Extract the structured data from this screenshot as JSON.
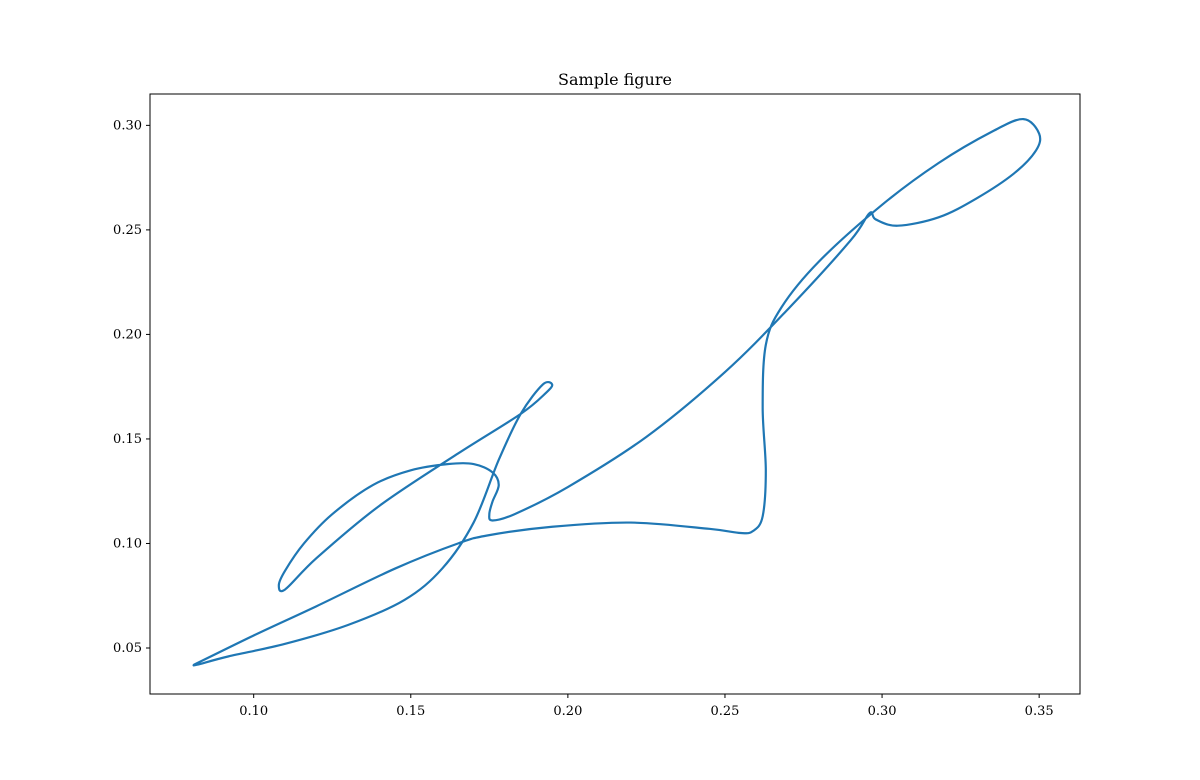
{
  "chart_data": {
    "type": "line",
    "title": "Sample figure",
    "xlabel": "",
    "ylabel": "",
    "xlim": [
      0.067,
      0.363
    ],
    "ylim": [
      0.028,
      0.315
    ],
    "xticks": [
      0.1,
      0.15,
      0.2,
      0.25,
      0.3,
      0.35
    ],
    "xtick_labels": [
      "0.10",
      "0.15",
      "0.20",
      "0.25",
      "0.30",
      "0.35"
    ],
    "yticks": [
      0.05,
      0.1,
      0.15,
      0.2,
      0.25,
      0.3
    ],
    "ytick_labels": [
      "0.05",
      "0.10",
      "0.15",
      "0.20",
      "0.25",
      "0.30"
    ],
    "grid": false,
    "series": [
      {
        "color": "#1f77b4",
        "x": [
          0.081,
          0.1,
          0.12,
          0.145,
          0.165,
          0.175,
          0.195,
          0.22,
          0.245,
          0.255,
          0.259,
          0.262,
          0.263,
          0.262,
          0.263,
          0.268,
          0.28,
          0.3,
          0.318,
          0.335,
          0.345,
          0.35,
          0.349,
          0.342,
          0.33,
          0.318,
          0.305,
          0.298,
          0.296,
          0.29,
          0.27,
          0.25,
          0.225,
          0.2,
          0.183,
          0.176,
          0.175,
          0.176,
          0.178,
          0.176,
          0.17,
          0.162,
          0.15,
          0.138,
          0.125,
          0.116,
          0.11,
          0.108,
          0.11,
          0.12,
          0.14,
          0.165,
          0.185,
          0.193,
          0.195,
          0.192,
          0.185,
          0.178,
          0.17,
          0.16,
          0.148,
          0.13,
          0.11,
          0.092,
          0.082,
          0.081
        ],
        "y": [
          0.042,
          0.056,
          0.07,
          0.088,
          0.1,
          0.104,
          0.108,
          0.11,
          0.107,
          0.105,
          0.106,
          0.113,
          0.135,
          0.165,
          0.195,
          0.213,
          0.235,
          0.262,
          0.282,
          0.297,
          0.303,
          0.296,
          0.288,
          0.277,
          0.265,
          0.256,
          0.252,
          0.255,
          0.258,
          0.245,
          0.212,
          0.182,
          0.151,
          0.127,
          0.114,
          0.111,
          0.114,
          0.12,
          0.128,
          0.134,
          0.138,
          0.138,
          0.135,
          0.128,
          0.114,
          0.1,
          0.087,
          0.08,
          0.078,
          0.093,
          0.118,
          0.143,
          0.162,
          0.172,
          0.176,
          0.176,
          0.162,
          0.14,
          0.11,
          0.088,
          0.073,
          0.061,
          0.052,
          0.046,
          0.042,
          0.042
        ]
      }
    ]
  }
}
